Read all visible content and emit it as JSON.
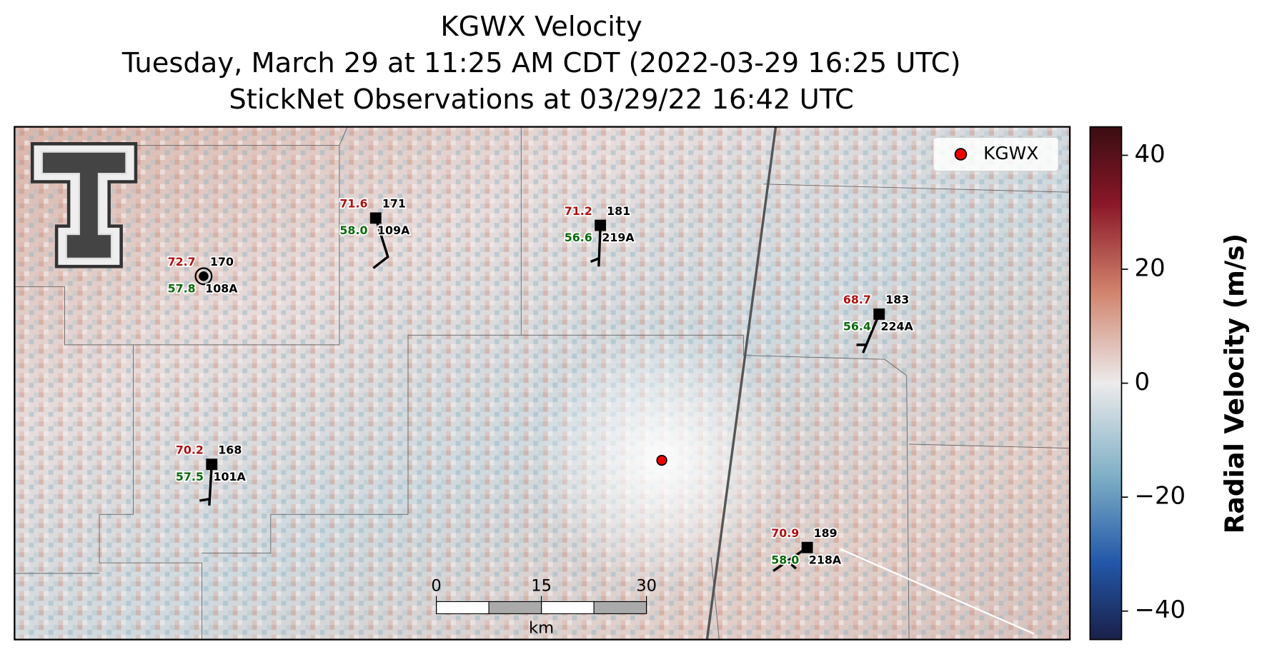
{
  "title": [
    "KGWX Velocity",
    "Tuesday, March 29 at 11:25 AM CDT (2022-03-29 16:25 UTC)",
    "StickNet Observations at 03/29/22 16:42 UTC"
  ],
  "legend": {
    "label": "KGWX"
  },
  "colorbar": {
    "label": "Radial Velocity (m/s)",
    "lim": [
      -45,
      45
    ],
    "ticks": [
      40,
      20,
      0,
      {
        "value": -20,
        "label": "−20"
      },
      {
        "value": -40,
        "label": "−40"
      }
    ]
  },
  "scale_bar": {
    "ticks": [
      0,
      15,
      30
    ],
    "unit": "km"
  },
  "stations": [
    {
      "id": "108A",
      "temperature": "72.7",
      "dewpoint": "57.8",
      "number": "170"
    },
    {
      "id": "109A",
      "temperature": "71.6",
      "dewpoint": "58.0",
      "number": "171"
    },
    {
      "id": "219A",
      "temperature": "71.2",
      "dewpoint": "56.6",
      "number": "181"
    },
    {
      "id": "224A",
      "temperature": "68.7",
      "dewpoint": "56.4",
      "number": "183"
    },
    {
      "id": "101A",
      "temperature": "70.2",
      "dewpoint": "57.5",
      "number": "168"
    },
    {
      "id": "218A",
      "temperature": "70.9",
      "dewpoint": "58.0",
      "number": "189"
    }
  ]
}
